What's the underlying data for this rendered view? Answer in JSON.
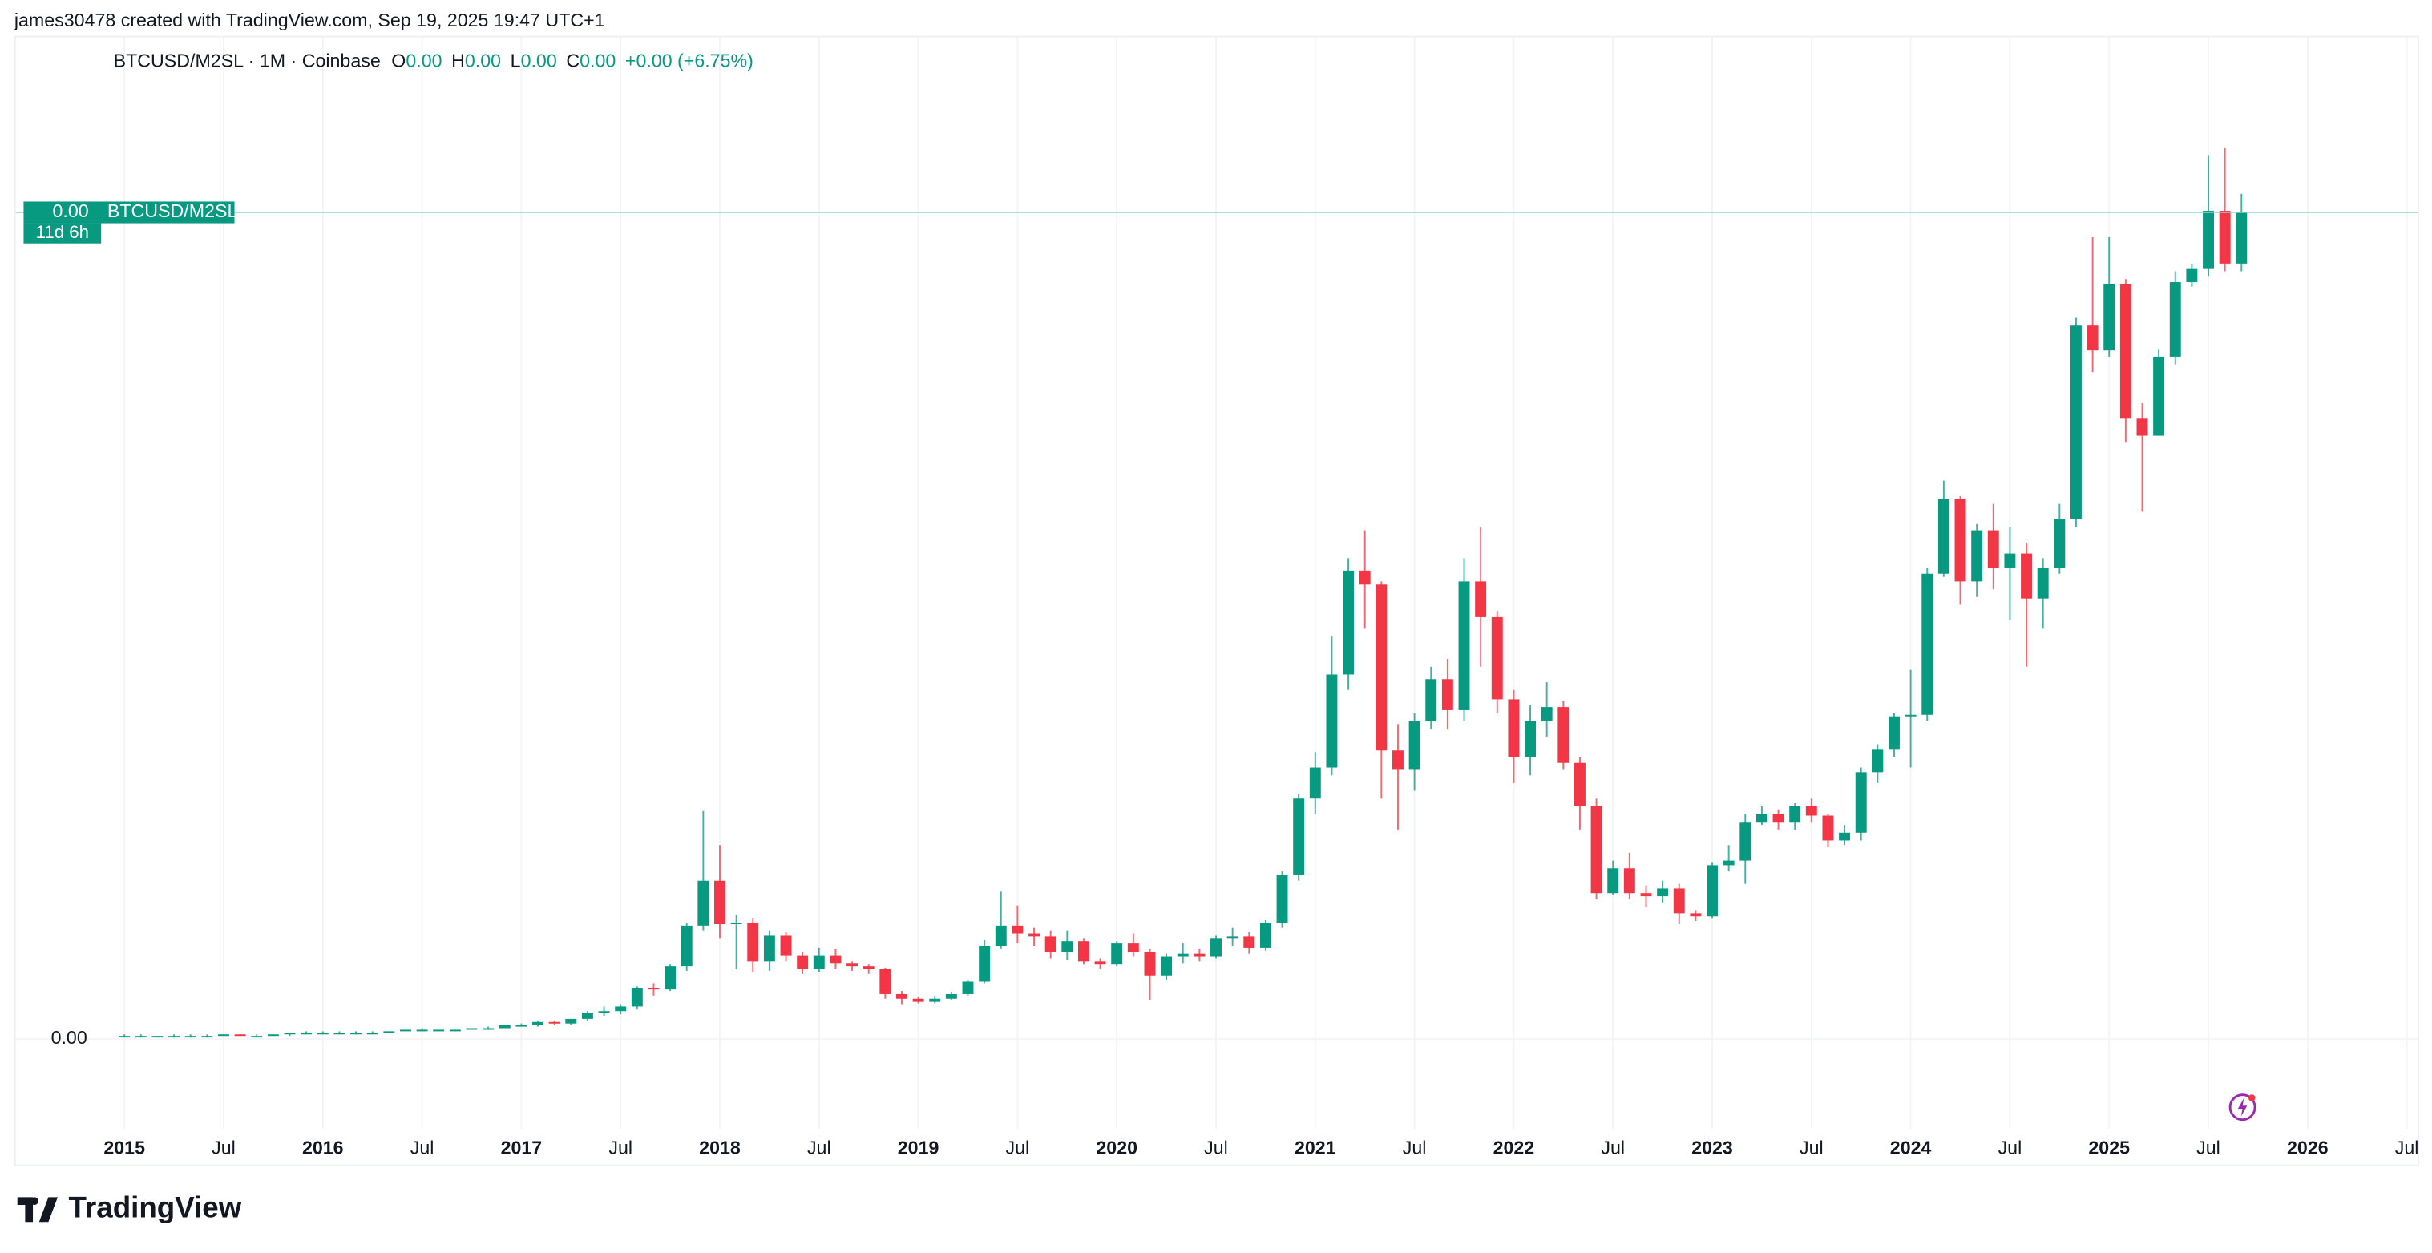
{
  "header": {
    "attribution": "james30478 created with TradingView.com, Sep 19, 2025 19:47 UTC+1"
  },
  "footer": {
    "logo": "TradingView"
  },
  "chart_data": {
    "type": "candlestick",
    "legend_title": "BTCUSD/M2SL · 1M · Coinbase",
    "ohlc_labels": [
      {
        "key": "O",
        "value": "0.00"
      },
      {
        "key": "H",
        "value": "0.00"
      },
      {
        "key": "L",
        "value": "0.00"
      },
      {
        "key": "C",
        "value": "0.00"
      }
    ],
    "change_label": "+0.00 (+6.75%)",
    "symbol": "BTCUSD/M2SL",
    "last_price_label": "0.00",
    "countdown": "11d 6h",
    "up_color": "#089981",
    "down_color": "#f23645",
    "x": [
      "2015-01",
      "2015-02",
      "2015-03",
      "2015-04",
      "2015-05",
      "2015-06",
      "2015-07",
      "2015-08",
      "2015-09",
      "2015-10",
      "2015-11",
      "2015-12",
      "2016-01",
      "2016-02",
      "2016-03",
      "2016-04",
      "2016-05",
      "2016-06",
      "2016-07",
      "2016-08",
      "2016-09",
      "2016-10",
      "2016-11",
      "2016-12",
      "2017-01",
      "2017-02",
      "2017-03",
      "2017-04",
      "2017-05",
      "2017-06",
      "2017-07",
      "2017-08",
      "2017-09",
      "2017-10",
      "2017-11",
      "2017-12",
      "2018-01",
      "2018-02",
      "2018-03",
      "2018-04",
      "2018-05",
      "2018-06",
      "2018-07",
      "2018-08",
      "2018-09",
      "2018-10",
      "2018-11",
      "2018-12",
      "2019-01",
      "2019-02",
      "2019-03",
      "2019-04",
      "2019-05",
      "2019-06",
      "2019-07",
      "2019-08",
      "2019-09",
      "2019-10",
      "2019-11",
      "2019-12",
      "2020-01",
      "2020-02",
      "2020-03",
      "2020-04",
      "2020-05",
      "2020-06",
      "2020-07",
      "2020-08",
      "2020-09",
      "2020-10",
      "2020-11",
      "2020-12",
      "2021-01",
      "2021-02",
      "2021-03",
      "2021-04",
      "2021-05",
      "2021-06",
      "2021-07",
      "2021-08",
      "2021-09",
      "2021-10",
      "2021-11",
      "2021-12",
      "2022-01",
      "2022-02",
      "2022-03",
      "2022-04",
      "2022-05",
      "2022-06",
      "2022-07",
      "2022-08",
      "2022-09",
      "2022-10",
      "2022-11",
      "2022-12",
      "2023-01",
      "2023-02",
      "2023-03",
      "2023-04",
      "2023-05",
      "2023-06",
      "2023-07",
      "2023-08",
      "2023-09",
      "2023-10",
      "2023-11",
      "2023-12",
      "2024-01",
      "2024-02",
      "2024-03",
      "2024-04",
      "2024-05",
      "2024-06",
      "2024-07",
      "2024-08",
      "2024-09",
      "2024-10",
      "2024-11",
      "2024-12",
      "2025-01",
      "2025-02",
      "2025-03",
      "2025-04",
      "2025-05",
      "2025-06",
      "2025-07",
      "2025-08",
      "2025-09"
    ],
    "open": [
      2e-11,
      2e-11,
      2e-11,
      2e-11,
      2e-11,
      2e-11,
      2e-11,
      3e-11,
      2e-11,
      2e-11,
      3e-11,
      4e-11,
      4e-11,
      4e-11,
      4e-11,
      4e-11,
      4e-11,
      5e-11,
      6e-11,
      6e-11,
      6e-11,
      6e-11,
      7e-11,
      7e-11,
      9e-11,
      9e-11,
      1.1e-10,
      1e-10,
      1.3e-10,
      1.7e-10,
      1.8e-10,
      2.1e-10,
      3.3e-10,
      3.2e-10,
      4.7e-10,
      7.3e-10,
      1.02e-09,
      7.4e-10,
      7.5e-10,
      5e-10,
      6.7e-10,
      5.4e-10,
      4.5e-10,
      5.4e-10,
      4.9e-10,
      4.7e-10,
      4.5e-10,
      2.9e-10,
      2.6e-10,
      2.4e-10,
      2.6e-10,
      2.9e-10,
      3.7e-10,
      6e-10,
      7.3e-10,
      6.8e-10,
      6.6e-10,
      5.6e-10,
      6.3e-10,
      5e-10,
      4.8e-10,
      6.2e-10,
      5.6e-10,
      4.1e-10,
      5.3e-10,
      5.5e-10,
      5.3e-10,
      6.5e-10,
      6.6e-10,
      5.9e-10,
      7.5e-10,
      1.06e-09,
      1.55e-09,
      1.75e-09,
      2.35e-09,
      3.02e-09,
      2.93e-09,
      1.86e-09,
      1.74e-09,
      2.05e-09,
      2.32e-09,
      2.12e-09,
      2.95e-09,
      2.72e-09,
      2.19e-09,
      1.82e-09,
      2.05e-09,
      2.14e-09,
      1.78e-09,
      1.5e-09,
      9.4e-10,
      1.1e-09,
      9.4e-10,
      9.2e-10,
      9.7e-10,
      8.1e-10,
      7.9e-10,
      1.12e-09,
      1.15e-09,
      1.4e-09,
      1.45e-09,
      1.4e-09,
      1.5e-09,
      1.44e-09,
      1.28e-09,
      1.33e-09,
      1.72e-09,
      1.87e-09,
      2.08e-09,
      2.09e-09,
      3e-09,
      3.48e-09,
      2.95e-09,
      3.28e-09,
      3.04e-09,
      3.13e-09,
      2.84e-09,
      3.04e-09,
      3.35e-09,
      4.6e-09,
      4.44e-09,
      4.87e-09,
      4e-09,
      3.89e-09,
      4.4e-09,
      4.88e-09,
      4.97e-09,
      5.34e-09,
      5e-09
    ],
    "high": [
      3e-11,
      3e-11,
      2e-11,
      3e-11,
      3e-11,
      3e-11,
      3e-11,
      3e-11,
      3e-11,
      3e-11,
      4e-11,
      5e-11,
      5e-11,
      5e-11,
      5e-11,
      5e-11,
      5e-11,
      6e-11,
      7e-11,
      6e-11,
      6e-11,
      7e-11,
      8e-11,
      9e-11,
      1e-10,
      1.2e-10,
      1.2e-10,
      1.3e-10,
      1.8e-10,
      2.1e-10,
      2.2e-10,
      3.4e-10,
      3.6e-10,
      4.8e-10,
      7.5e-10,
      1.47e-09,
      1.25e-09,
      8e-10,
      7.8e-10,
      7e-10,
      6.9e-10,
      5.6e-10,
      5.9e-10,
      5.8e-10,
      5e-10,
      4.8e-10,
      4.6e-10,
      3.1e-10,
      2.7e-10,
      2.8e-10,
      3e-10,
      3.8e-10,
      6.4e-10,
      9.5e-10,
      8.6e-10,
      7.2e-10,
      7e-10,
      7e-10,
      6.5e-10,
      5.2e-10,
      6.3e-10,
      6.8e-10,
      5.8e-10,
      5.5e-10,
      6.2e-10,
      5.8e-10,
      6.7e-10,
      7.2e-10,
      6.9e-10,
      7.7e-10,
      1.08e-09,
      1.58e-09,
      1.85e-09,
      2.6e-09,
      3.1e-09,
      3.28e-09,
      2.95e-09,
      2.03e-09,
      2.1e-09,
      2.4e-09,
      2.45e-09,
      3.1e-09,
      3.3e-09,
      2.76e-09,
      2.25e-09,
      2.15e-09,
      2.3e-09,
      2.18e-09,
      1.82e-09,
      1.55e-09,
      1.15e-09,
      1.2e-09,
      9.9e-10,
      1.02e-09,
      1e-09,
      8.3e-10,
      1.14e-09,
      1.25e-09,
      1.45e-09,
      1.5e-09,
      1.48e-09,
      1.52e-09,
      1.55e-09,
      1.45e-09,
      1.38e-09,
      1.75e-09,
      1.9e-09,
      2.1e-09,
      2.38e-09,
      3.04e-09,
      3.6e-09,
      3.5e-09,
      3.32e-09,
      3.45e-09,
      3.3e-09,
      3.2e-09,
      3.1e-09,
      3.45e-09,
      4.65e-09,
      5.17e-09,
      5.17e-09,
      4.9e-09,
      4.1e-09,
      4.45e-09,
      4.95e-09,
      5e-09,
      5.7e-09,
      5.75e-09,
      5.45e-09
    ],
    "low": [
      1e-11,
      1e-11,
      1e-11,
      1e-11,
      1e-11,
      1e-11,
      2e-11,
      2e-11,
      2e-11,
      2e-11,
      2e-11,
      3e-11,
      3e-11,
      3e-11,
      3e-11,
      3e-11,
      4e-11,
      5e-11,
      5e-11,
      5e-11,
      5e-11,
      6e-11,
      6e-11,
      7e-11,
      8e-11,
      8e-11,
      9e-11,
      9e-11,
      1.2e-10,
      1.5e-10,
      1.6e-10,
      1.9e-10,
      2.8e-10,
      3.1e-10,
      4.4e-10,
      7e-10,
      6.5e-10,
      4.5e-10,
      4.3e-10,
      4.4e-10,
      5e-10,
      4.2e-10,
      4.3e-10,
      4.5e-10,
      4.4e-10,
      4.2e-10,
      2.6e-10,
      2.2e-10,
      2.3e-10,
      2.3e-10,
      2.5e-10,
      2.8e-10,
      3.6e-10,
      5.8e-10,
      6.2e-10,
      6e-10,
      5.2e-10,
      5.1e-10,
      4.8e-10,
      4.5e-10,
      4.7e-10,
      5.3e-10,
      2.5e-10,
      3.8e-10,
      4.9e-10,
      5e-10,
      5.2e-10,
      6e-10,
      5.5e-10,
      5.7e-10,
      7.2e-10,
      1.02e-09,
      1.45e-09,
      1.7e-09,
      2.25e-09,
      2.65e-09,
      1.55e-09,
      1.35e-09,
      1.6e-09,
      2e-09,
      2e-09,
      2.05e-09,
      2.4e-09,
      2.1e-09,
      1.65e-09,
      1.7e-09,
      1.95e-09,
      1.74e-09,
      1.35e-09,
      9e-10,
      9.3e-10,
      9e-10,
      8.5e-10,
      8.8e-10,
      7.4e-10,
      7.6e-10,
      7.8e-10,
      1.08e-09,
      1e-09,
      1.38e-09,
      1.35e-09,
      1.35e-09,
      1.4e-09,
      1.24e-09,
      1.25e-09,
      1.28e-09,
      1.65e-09,
      1.82e-09,
      1.75e-09,
      2.05e-09,
      2.98e-09,
      2.8e-09,
      2.85e-09,
      2.9e-09,
      2.7e-09,
      2.4e-09,
      2.65e-09,
      3e-09,
      3.3e-09,
      4.3e-09,
      4.4e-09,
      3.85e-09,
      3.4e-09,
      3.92e-09,
      4.35e-09,
      4.85e-09,
      4.92e-09,
      4.95e-09,
      4.95e-09
    ],
    "close": [
      2e-11,
      2e-11,
      2e-11,
      2e-11,
      2e-11,
      2e-11,
      3e-11,
      2e-11,
      2e-11,
      3e-11,
      4e-11,
      4e-11,
      4e-11,
      4e-11,
      4e-11,
      4e-11,
      5e-11,
      6e-11,
      6e-11,
      6e-11,
      6e-11,
      7e-11,
      7e-11,
      9e-11,
      9e-11,
      1.1e-10,
      1e-10,
      1.3e-10,
      1.7e-10,
      1.8e-10,
      2.1e-10,
      3.3e-10,
      3.2e-10,
      4.7e-10,
      7.3e-10,
      1.02e-09,
      7.4e-10,
      7.5e-10,
      5e-10,
      6.7e-10,
      5.4e-10,
      4.5e-10,
      5.4e-10,
      4.9e-10,
      4.7e-10,
      4.5e-10,
      2.9e-10,
      2.6e-10,
      2.4e-10,
      2.6e-10,
      2.9e-10,
      3.7e-10,
      6e-10,
      7.3e-10,
      6.8e-10,
      6.6e-10,
      5.6e-10,
      6.3e-10,
      5e-10,
      4.8e-10,
      6.2e-10,
      5.6e-10,
      4.1e-10,
      5.3e-10,
      5.5e-10,
      5.3e-10,
      6.5e-10,
      6.6e-10,
      5.9e-10,
      7.5e-10,
      1.06e-09,
      1.55e-09,
      1.75e-09,
      2.35e-09,
      3.02e-09,
      2.93e-09,
      1.86e-09,
      1.74e-09,
      2.05e-09,
      2.32e-09,
      2.12e-09,
      2.95e-09,
      2.72e-09,
      2.19e-09,
      1.82e-09,
      2.05e-09,
      2.14e-09,
      1.78e-09,
      1.5e-09,
      9.4e-10,
      1.1e-09,
      9.4e-10,
      9.2e-10,
      9.7e-10,
      8.1e-10,
      7.9e-10,
      1.12e-09,
      1.15e-09,
      1.4e-09,
      1.45e-09,
      1.4e-09,
      1.5e-09,
      1.44e-09,
      1.28e-09,
      1.33e-09,
      1.72e-09,
      1.87e-09,
      2.08e-09,
      2.09e-09,
      3e-09,
      3.48e-09,
      2.95e-09,
      3.28e-09,
      3.04e-09,
      3.13e-09,
      2.84e-09,
      3.04e-09,
      3.35e-09,
      4.6e-09,
      4.44e-09,
      4.87e-09,
      4e-09,
      3.89e-09,
      4.4e-09,
      4.88e-09,
      4.97e-09,
      5.34e-09,
      5e-09,
      5.33e-09
    ],
    "ylim": [
      -5.8e-10,
      6.5e-09
    ],
    "yticks": [
      {
        "value": 0,
        "label": "0.00"
      }
    ],
    "xticks": [
      {
        "value": "2015-01",
        "label": "2015"
      },
      {
        "value": "2015-07",
        "label": "Jul"
      },
      {
        "value": "2016-01",
        "label": "2016"
      },
      {
        "value": "2016-07",
        "label": "Jul"
      },
      {
        "value": "2017-01",
        "label": "2017"
      },
      {
        "value": "2017-07",
        "label": "Jul"
      },
      {
        "value": "2018-01",
        "label": "2018"
      },
      {
        "value": "2018-07",
        "label": "Jul"
      },
      {
        "value": "2019-01",
        "label": "2019"
      },
      {
        "value": "2019-07",
        "label": "Jul"
      },
      {
        "value": "2020-01",
        "label": "2020"
      },
      {
        "value": "2020-07",
        "label": "Jul"
      },
      {
        "value": "2021-01",
        "label": "2021"
      },
      {
        "value": "2021-07",
        "label": "Jul"
      },
      {
        "value": "2022-01",
        "label": "2022"
      },
      {
        "value": "2022-07",
        "label": "Jul"
      },
      {
        "value": "2023-01",
        "label": "2023"
      },
      {
        "value": "2023-07",
        "label": "Jul"
      },
      {
        "value": "2024-01",
        "label": "2024"
      },
      {
        "value": "2024-07",
        "label": "Jul"
      },
      {
        "value": "2025-01",
        "label": "2025"
      },
      {
        "value": "2025-07",
        "label": "Jul"
      },
      {
        "value": "2026-01",
        "label": "2026"
      },
      {
        "value": "2026-07",
        "label": "Jul"
      }
    ]
  }
}
